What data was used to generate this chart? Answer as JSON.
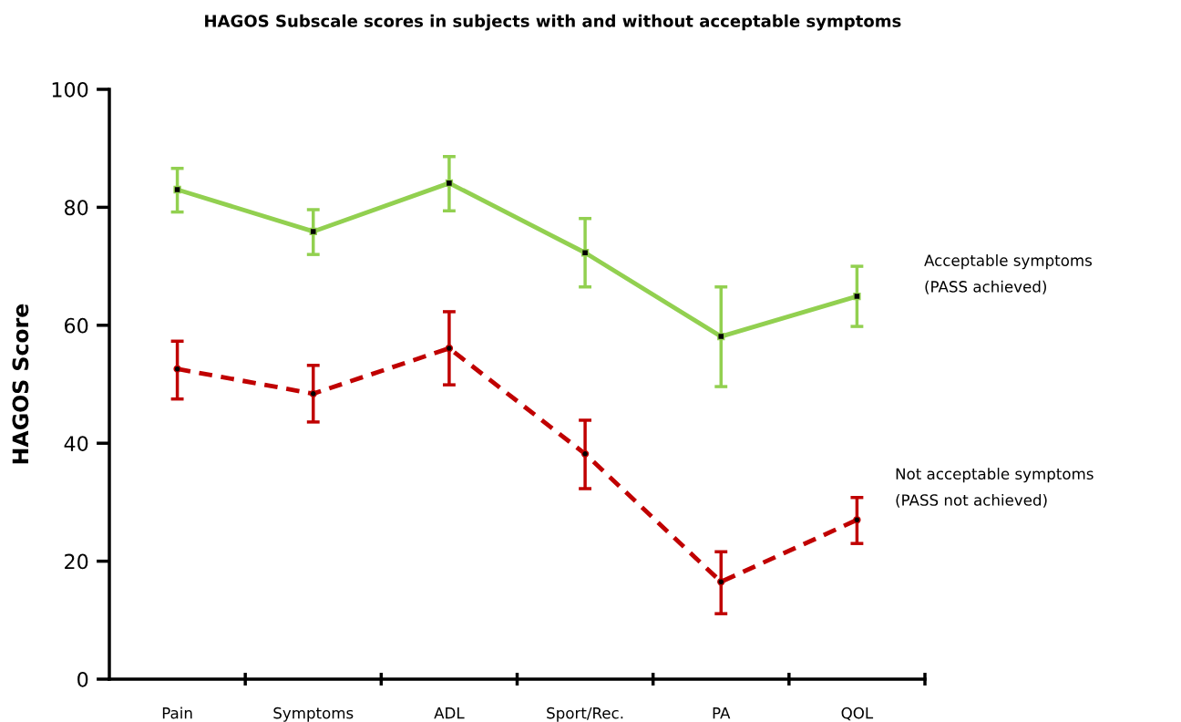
{
  "chart_data": {
    "type": "line",
    "title": "HAGOS Subscale scores in subjects with and without acceptable symptoms",
    "ylabel": "HAGOS Score",
    "categories": [
      "Pain",
      "Symptoms",
      "ADL",
      "Sport/Rec.",
      "PA",
      "QOL"
    ],
    "series": [
      {
        "name": "Acceptable symptoms\n(PASS achieved)",
        "color": "#92d050",
        "marker": "square",
        "line_style": "solid",
        "values": [
          83.0,
          75.9,
          84.1,
          72.3,
          58.1,
          64.9
        ],
        "errors": [
          [
            79.2,
            86.6
          ],
          [
            72.0,
            79.6
          ],
          [
            79.4,
            88.6
          ],
          [
            66.5,
            78.1
          ],
          [
            49.6,
            66.5
          ],
          [
            59.8,
            70.0
          ]
        ]
      },
      {
        "name": "Not acceptable symptoms\n(PASS not achieved)",
        "color": "#c00000",
        "marker": "circle",
        "line_style": "dashed",
        "values": [
          52.6,
          48.4,
          56.1,
          38.2,
          16.5,
          27.0
        ],
        "errors": [
          [
            47.5,
            57.3
          ],
          [
            43.6,
            53.2
          ],
          [
            49.9,
            62.3
          ],
          [
            32.3,
            43.9
          ],
          [
            11.1,
            21.6
          ],
          [
            23.0,
            30.8
          ]
        ]
      }
    ],
    "ylim": [
      0,
      100
    ],
    "yticks": [
      0,
      20,
      40,
      60,
      80,
      100
    ],
    "grid": false,
    "legend": false
  }
}
